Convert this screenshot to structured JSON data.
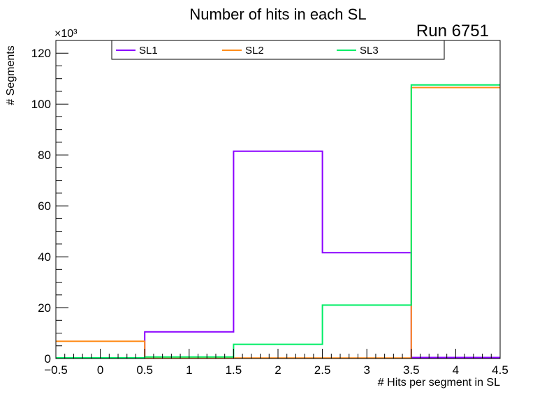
{
  "chart_data": {
    "type": "histogram-step",
    "title": "Number of hits in each SL",
    "annotation": "Run 6751",
    "xlabel": "# Hits per segment in SL",
    "ylabel": "# Segments",
    "y_multiplier_label": "×10³",
    "xlim": [
      -0.5,
      4.5
    ],
    "ylim": [
      0,
      125
    ],
    "x_ticks": [
      "−0.5",
      "0",
      "0.5",
      "1",
      "1.5",
      "2",
      "2.5",
      "3",
      "3.5",
      "4",
      "4.5"
    ],
    "x_tick_values": [
      -0.5,
      0,
      0.5,
      1,
      1.5,
      2,
      2.5,
      3,
      3.5,
      4,
      4.5
    ],
    "y_ticks": [
      "0",
      "20",
      "40",
      "60",
      "80",
      "100",
      "120"
    ],
    "y_tick_values": [
      0,
      20,
      40,
      60,
      80,
      100,
      120
    ],
    "bin_edges": [
      -0.5,
      0.5,
      1.5,
      2.5,
      3.5,
      4.5
    ],
    "legend_position": "top",
    "series": [
      {
        "name": "SL1",
        "color": "#8a00ff",
        "values": [
          0.2,
          10.5,
          81.5,
          41.6,
          0.4
        ]
      },
      {
        "name": "SL2",
        "color": "#ff8c1a",
        "values": [
          6.8,
          0.3,
          0.2,
          0.2,
          106.5
        ]
      },
      {
        "name": "SL3",
        "color": "#00ee66",
        "values": [
          0.3,
          0.6,
          5.6,
          21.0,
          107.5
        ]
      }
    ]
  }
}
